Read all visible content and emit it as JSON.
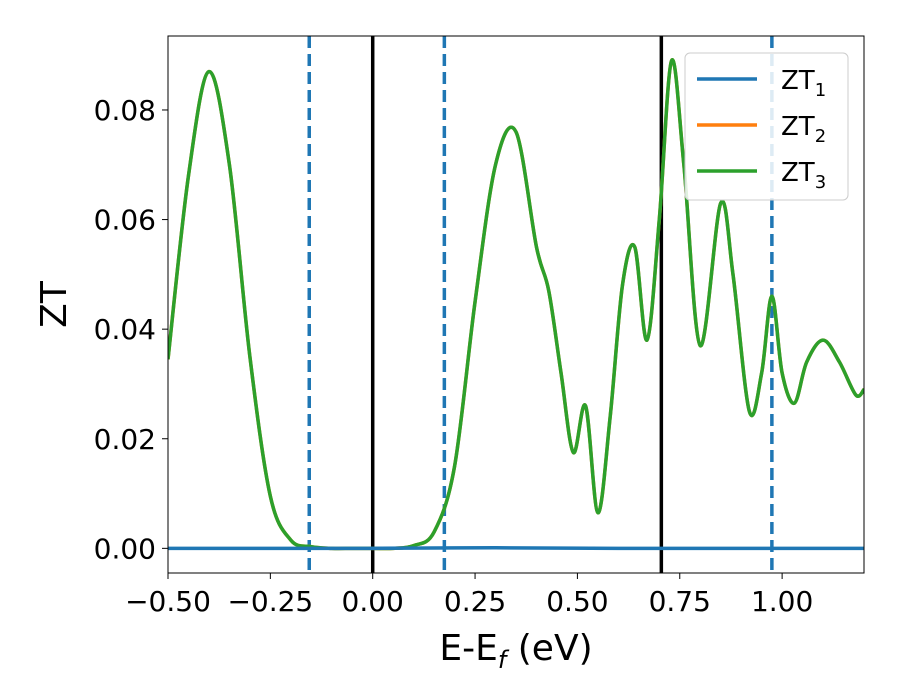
{
  "chart_data": {
    "type": "line",
    "xlabel": {
      "main": "E-E",
      "sub": "f",
      "unit": " (eV)"
    },
    "ylabel": "ZT",
    "xlim": [
      -0.5,
      1.2
    ],
    "ylim": [
      -0.0045,
      0.0935
    ],
    "xticks": [
      -0.5,
      -0.25,
      0.0,
      0.25,
      0.5,
      0.75,
      1.0
    ],
    "xtick_labels": [
      "−0.50",
      "−0.25",
      "0.00",
      "0.25",
      "0.50",
      "0.75",
      "1.00"
    ],
    "yticks": [
      0.0,
      0.02,
      0.04,
      0.06,
      0.08
    ],
    "ytick_labels": [
      "0.00",
      "0.02",
      "0.04",
      "0.06",
      "0.08"
    ],
    "grid": false,
    "legend_position": "top-right",
    "vlines": [
      {
        "x": -0.155,
        "style": "dashed",
        "color": "#1f77b4"
      },
      {
        "x": 0.0,
        "style": "solid",
        "color": "#000000"
      },
      {
        "x": 0.175,
        "style": "dashed",
        "color": "#1f77b4"
      },
      {
        "x": 0.705,
        "style": "solid",
        "color": "#000000"
      },
      {
        "x": 0.975,
        "style": "dashed",
        "color": "#1f77b4"
      }
    ],
    "series": [
      {
        "name": "ZT",
        "name_sub": "1",
        "color": "#1f77b4",
        "x": [
          -0.5,
          0.0,
          0.3,
          0.6,
          0.9,
          1.2
        ],
        "y": [
          0.0,
          0.0,
          0.0001,
          0.0,
          0.0,
          0.0
        ]
      },
      {
        "name": "ZT",
        "name_sub": "2",
        "color": "#ff7f0e",
        "x": [
          -0.5,
          -0.45,
          -0.4,
          -0.35,
          -0.3,
          -0.25,
          -0.2,
          -0.15,
          -0.1,
          -0.05,
          0.0,
          0.05,
          0.1,
          0.15,
          0.2,
          0.25,
          0.3,
          0.35,
          0.4,
          0.43,
          0.46,
          0.49,
          0.52,
          0.55,
          0.58,
          0.61,
          0.64,
          0.67,
          0.7,
          0.73,
          0.76,
          0.8,
          0.85,
          0.88,
          0.92,
          0.95,
          0.975,
          1.0,
          1.03,
          1.06,
          1.1,
          1.14,
          1.18,
          1.2
        ],
        "y": [
          0.0345,
          0.068,
          0.087,
          0.07,
          0.035,
          0.0095,
          0.0015,
          0.0003,
          0.0,
          0.0,
          0.0,
          0.0,
          0.0005,
          0.003,
          0.015,
          0.045,
          0.07,
          0.076,
          0.055,
          0.047,
          0.032,
          0.0175,
          0.026,
          0.0065,
          0.024,
          0.048,
          0.055,
          0.038,
          0.06,
          0.089,
          0.07,
          0.037,
          0.063,
          0.05,
          0.025,
          0.032,
          0.046,
          0.032,
          0.0265,
          0.034,
          0.038,
          0.034,
          0.028,
          0.029
        ]
      },
      {
        "name": "ZT",
        "name_sub": "3",
        "color": "#2ca02c",
        "x": [
          -0.5,
          -0.45,
          -0.4,
          -0.35,
          -0.3,
          -0.25,
          -0.2,
          -0.15,
          -0.1,
          -0.05,
          0.0,
          0.05,
          0.1,
          0.15,
          0.2,
          0.25,
          0.3,
          0.35,
          0.4,
          0.43,
          0.46,
          0.49,
          0.52,
          0.55,
          0.58,
          0.61,
          0.64,
          0.67,
          0.7,
          0.73,
          0.76,
          0.8,
          0.85,
          0.88,
          0.92,
          0.95,
          0.975,
          1.0,
          1.03,
          1.06,
          1.1,
          1.14,
          1.18,
          1.2
        ],
        "y": [
          0.0345,
          0.068,
          0.087,
          0.07,
          0.035,
          0.0095,
          0.0015,
          0.0003,
          0.0,
          0.0,
          0.0,
          0.0,
          0.0005,
          0.003,
          0.015,
          0.045,
          0.07,
          0.076,
          0.055,
          0.047,
          0.032,
          0.0175,
          0.026,
          0.0065,
          0.024,
          0.048,
          0.055,
          0.038,
          0.06,
          0.089,
          0.07,
          0.037,
          0.063,
          0.05,
          0.025,
          0.032,
          0.046,
          0.032,
          0.0265,
          0.034,
          0.038,
          0.034,
          0.028,
          0.029
        ]
      }
    ]
  }
}
